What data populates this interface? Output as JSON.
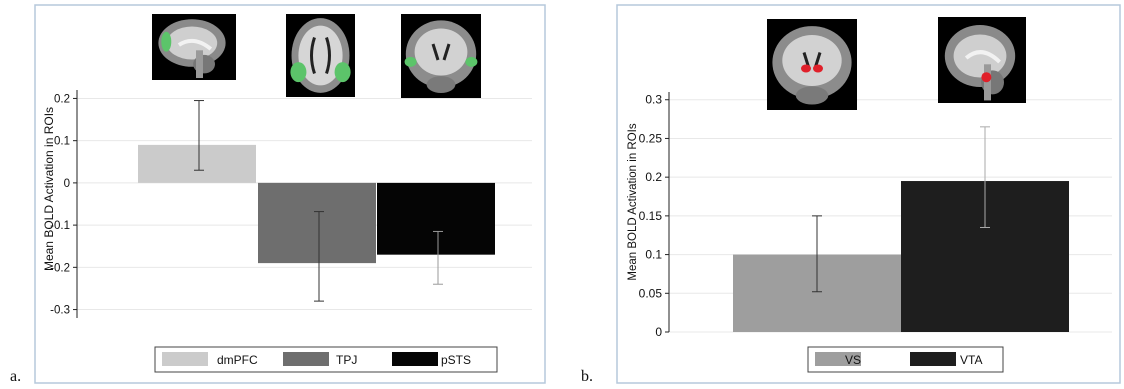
{
  "panel_labels": [
    "a.",
    "b."
  ],
  "colors": {
    "frame": "#b5c8dc",
    "grid": "#e8e8e8",
    "axis": "#222222",
    "green_roi": "#5cc46a",
    "red_roi": "#e0202a",
    "brain_bg": "#000000"
  },
  "chart_data": [
    {
      "type": "bar",
      "panel": "a.",
      "ylabel": "Mean BOLD Activation in ROIs",
      "ylim": [
        -0.32,
        0.22
      ],
      "yticks": [
        0.2,
        0.1,
        0,
        -0.1,
        -0.2,
        -0.3
      ],
      "ytick_labels": [
        "0.2",
        "0.1",
        "0",
        "-0.1",
        "-0.2",
        "-0.3"
      ],
      "grid": true,
      "legend_position": "bottom",
      "categories": [
        "dmPFC",
        "TPJ",
        "pSTS"
      ],
      "values": [
        0.09,
        -0.19,
        -0.17
      ],
      "error_low": [
        0.03,
        -0.28,
        -0.24
      ],
      "error_high": [
        0.195,
        -0.068,
        -0.115
      ],
      "colors": [
        "#cbcbcb",
        "#6e6e6e",
        "#050505"
      ],
      "error_colors": [
        "#333333",
        "#333333",
        "#9a9a9a"
      ],
      "icons": [
        "sagittal-brain-dmpfc-icon",
        "axial-brain-tpj-icon",
        "coronal-brain-psts-icon"
      ]
    },
    {
      "type": "bar",
      "panel": "b.",
      "ylabel": "Mean BOLD Activation in ROIs",
      "ylim": [
        0,
        0.31
      ],
      "yticks": [
        0,
        0.05,
        0.1,
        0.15,
        0.2,
        0.25,
        0.3
      ],
      "ytick_labels": [
        "0",
        "0.05",
        "0.1",
        "0.15",
        "0.2",
        "0.25",
        "0.3"
      ],
      "grid": true,
      "legend_position": "bottom",
      "categories": [
        "VS",
        "VTA"
      ],
      "values": [
        0.1,
        0.195
      ],
      "error_low": [
        0.052,
        0.135
      ],
      "error_high": [
        0.15,
        0.265
      ],
      "colors": [
        "#9e9e9e",
        "#1e1e1e"
      ],
      "error_colors": [
        "#333333",
        "#aaaaaa"
      ],
      "icons": [
        "coronal-brain-vs-icon",
        "sagittal-brain-vta-icon"
      ]
    }
  ]
}
